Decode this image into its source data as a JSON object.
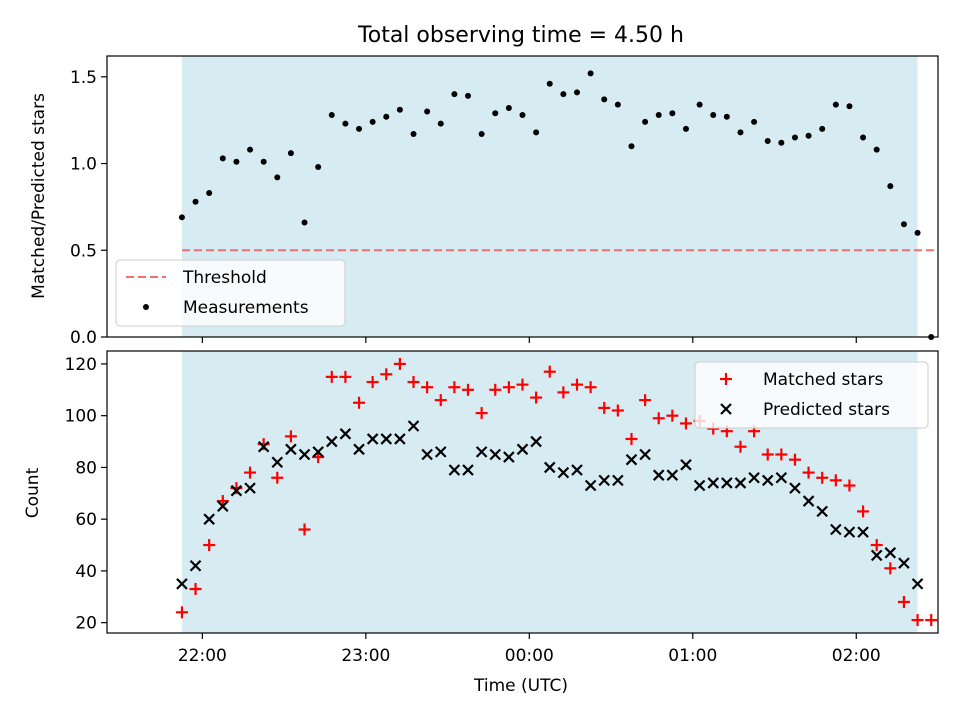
{
  "chart_data": [
    {
      "type": "scatter",
      "title": "Total observing time = 4.50 h",
      "ylabel": "Matched/Predicted stars",
      "xlabel": "",
      "x_unit": "minutes after 22:00 UTC",
      "xlim": [
        -35,
        270
      ],
      "ylim": [
        0,
        1.62
      ],
      "yticks": [
        0.0,
        0.5,
        1.0,
        1.5
      ],
      "ytick_labels": [
        "0.0",
        "0.5",
        "1.0",
        "1.5"
      ],
      "observing_window": [
        -7.5,
        262.5
      ],
      "legend": {
        "placement": "lower-left",
        "threshold_label": "Threshold",
        "measurements_label": "Measurements"
      },
      "threshold": {
        "name": "Threshold",
        "value": 0.5,
        "x_range": [
          -7.5,
          270
        ],
        "color": "#f07070"
      },
      "series": [
        {
          "name": "Measurements",
          "color": "#000000",
          "x": [
            -7.5,
            -2.5,
            2.5,
            7.5,
            12.5,
            17.5,
            22.5,
            27.5,
            32.5,
            37.5,
            42.5,
            47.5,
            52.5,
            57.5,
            62.5,
            67.5,
            72.5,
            77.5,
            82.5,
            87.5,
            92.5,
            97.5,
            102.5,
            107.5,
            112.5,
            117.5,
            122.5,
            127.5,
            132.5,
            137.5,
            142.5,
            147.5,
            152.5,
            157.5,
            162.5,
            167.5,
            172.5,
            177.5,
            182.5,
            187.5,
            192.5,
            197.5,
            202.5,
            207.5,
            212.5,
            217.5,
            222.5,
            227.5,
            232.5,
            237.5,
            242.5,
            247.5,
            252.5,
            257.5,
            262.5,
            267.5
          ],
          "values": [
            0.69,
            0.78,
            0.83,
            1.03,
            1.01,
            1.08,
            1.01,
            0.92,
            1.06,
            0.66,
            0.98,
            1.28,
            1.23,
            1.2,
            1.24,
            1.27,
            1.31,
            1.17,
            1.3,
            1.23,
            1.4,
            1.39,
            1.17,
            1.29,
            1.32,
            1.28,
            1.18,
            1.46,
            1.4,
            1.41,
            1.52,
            1.37,
            1.34,
            1.1,
            1.24,
            1.28,
            1.29,
            1.2,
            1.34,
            1.28,
            1.27,
            1.18,
            1.24,
            1.13,
            1.12,
            1.15,
            1.16,
            1.2,
            1.34,
            1.33,
            1.15,
            1.08,
            0.87,
            0.65,
            0.6,
            0.0
          ]
        }
      ]
    },
    {
      "type": "scatter",
      "title": "",
      "ylabel": "Count",
      "xlabel": "Time (UTC)",
      "x_unit": "minutes after 22:00 UTC",
      "xlim": [
        -35,
        270
      ],
      "ylim": [
        16,
        125
      ],
      "yticks": [
        20,
        40,
        60,
        80,
        100,
        120
      ],
      "ytick_labels": [
        "20",
        "40",
        "60",
        "80",
        "100",
        "120"
      ],
      "xticks": [
        0,
        60,
        120,
        180,
        240
      ],
      "xtick_labels": [
        "22:00",
        "23:00",
        "00:00",
        "01:00",
        "02:00"
      ],
      "observing_window": [
        -7.5,
        262.5
      ],
      "legend": {
        "placement": "top-right",
        "matched_label": "Matched stars",
        "predicted_label": "Predicted stars"
      },
      "series": [
        {
          "name": "Matched stars",
          "color": "#ff0000",
          "marker": "plus",
          "x": [
            -7.5,
            -2.5,
            2.5,
            7.5,
            12.5,
            17.5,
            22.5,
            27.5,
            32.5,
            37.5,
            42.5,
            47.5,
            52.5,
            57.5,
            62.5,
            67.5,
            72.5,
            77.5,
            82.5,
            87.5,
            92.5,
            97.5,
            102.5,
            107.5,
            112.5,
            117.5,
            122.5,
            127.5,
            132.5,
            137.5,
            142.5,
            147.5,
            152.5,
            157.5,
            162.5,
            167.5,
            172.5,
            177.5,
            182.5,
            187.5,
            192.5,
            197.5,
            202.5,
            207.5,
            212.5,
            217.5,
            222.5,
            227.5,
            232.5,
            237.5,
            242.5,
            247.5,
            252.5,
            257.5,
            262.5,
            267.5
          ],
          "values": [
            24,
            33,
            50,
            67,
            72,
            78,
            89,
            76,
            92,
            56,
            84,
            115,
            115,
            105,
            113,
            116,
            120,
            113,
            111,
            106,
            111,
            110,
            101,
            110,
            111,
            112,
            107,
            117,
            109,
            112,
            111,
            103,
            102,
            91,
            106,
            99,
            100,
            97,
            98,
            95,
            94,
            88,
            94,
            85,
            85,
            83,
            78,
            76,
            75,
            73,
            63,
            50,
            41,
            28,
            21,
            21
          ]
        },
        {
          "name": "Predicted stars",
          "color": "#000000",
          "marker": "x",
          "x": [
            -7.5,
            -2.5,
            2.5,
            7.5,
            12.5,
            17.5,
            22.5,
            27.5,
            32.5,
            37.5,
            42.5,
            47.5,
            52.5,
            57.5,
            62.5,
            67.5,
            72.5,
            77.5,
            82.5,
            87.5,
            92.5,
            97.5,
            102.5,
            107.5,
            112.5,
            117.5,
            122.5,
            127.5,
            132.5,
            137.5,
            142.5,
            147.5,
            152.5,
            157.5,
            162.5,
            167.5,
            172.5,
            177.5,
            182.5,
            187.5,
            192.5,
            197.5,
            202.5,
            207.5,
            212.5,
            217.5,
            222.5,
            227.5,
            232.5,
            237.5,
            242.5,
            247.5,
            252.5,
            257.5,
            262.5
          ],
          "values": [
            35,
            42,
            60,
            65,
            71,
            72,
            88,
            82,
            87,
            85,
            86,
            90,
            93,
            87,
            91,
            91,
            91,
            96,
            85,
            86,
            79,
            79,
            86,
            85,
            84,
            87,
            90,
            80,
            78,
            79,
            73,
            75,
            75,
            83,
            85,
            77,
            77,
            81,
            73,
            74,
            74,
            74,
            76,
            75,
            76,
            72,
            67,
            63,
            56,
            55,
            55,
            46,
            47,
            43,
            35
          ]
        }
      ]
    }
  ]
}
